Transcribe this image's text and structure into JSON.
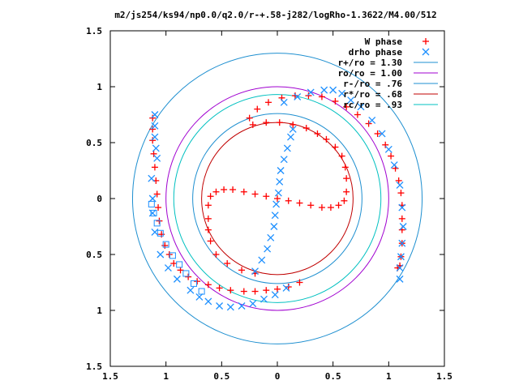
{
  "chart_data": {
    "type": "scatter",
    "title": "m2/js254/ks94/np0.0/q2.0/r-+.58-j282/logRho-1.3622/M4.00/512",
    "xlabel": "",
    "ylabel": "",
    "xlim": [
      -1.5,
      1.5
    ],
    "ylim": [
      -1.5,
      1.5
    ],
    "grid": false,
    "legend_position": "top-right",
    "x_ticks": [
      -1.5,
      -1,
      -0.5,
      0,
      0.5,
      1,
      1.5
    ],
    "x_tick_labels": [
      "1.5",
      "1",
      "0.5",
      "0",
      "0.5",
      "1",
      "1.5"
    ],
    "y_ticks": [
      1.5,
      1,
      0.5,
      0,
      -0.5,
      -1,
      -1.5
    ],
    "y_tick_labels": [
      "1.5",
      "1",
      "0.5",
      "0",
      "0.5",
      "1",
      "1.5"
    ],
    "series": [
      {
        "name": "W phase",
        "marker": "plus",
        "color": "#ff0000",
        "points": [
          [
            -1.12,
            0.72
          ],
          [
            -1.12,
            0.62
          ],
          [
            -1.12,
            0.52
          ],
          [
            -1.11,
            0.4
          ],
          [
            -1.1,
            0.28
          ],
          [
            -1.09,
            0.16
          ],
          [
            -1.08,
            0.04
          ],
          [
            -1.07,
            -0.08
          ],
          [
            -1.06,
            -0.2
          ],
          [
            -1.04,
            -0.32
          ],
          [
            -1.01,
            -0.42
          ],
          [
            -0.97,
            -0.5
          ],
          [
            -0.93,
            -0.58
          ],
          [
            -0.87,
            -0.64
          ],
          [
            -0.8,
            -0.7
          ],
          [
            -0.72,
            -0.74
          ],
          [
            -0.62,
            -0.77
          ],
          [
            -0.52,
            -0.8
          ],
          [
            -0.42,
            -0.82
          ],
          [
            -0.3,
            -0.83
          ],
          [
            -0.2,
            -0.83
          ],
          [
            -0.1,
            -0.82
          ],
          [
            0.0,
            -0.81
          ],
          [
            0.1,
            -0.79
          ],
          [
            0.2,
            -0.75
          ],
          [
            -0.6,
            -0.38
          ],
          [
            -0.62,
            -0.28
          ],
          [
            -0.62,
            -0.18
          ],
          [
            -0.62,
            -0.06
          ],
          [
            -0.6,
            0.02
          ],
          [
            -0.55,
            0.06
          ],
          [
            -0.48,
            0.08
          ],
          [
            -0.4,
            0.08
          ],
          [
            -0.3,
            0.06
          ],
          [
            -0.2,
            0.04
          ],
          [
            -0.1,
            0.02
          ],
          [
            0.0,
            0.0
          ],
          [
            0.1,
            -0.02
          ],
          [
            0.2,
            -0.04
          ],
          [
            0.3,
            -0.06
          ],
          [
            0.4,
            -0.08
          ],
          [
            0.48,
            -0.08
          ],
          [
            0.55,
            -0.06
          ],
          [
            0.6,
            -0.02
          ],
          [
            0.62,
            0.06
          ],
          [
            0.62,
            0.18
          ],
          [
            0.61,
            0.28
          ],
          [
            0.58,
            0.38
          ],
          [
            0.52,
            0.46
          ],
          [
            0.44,
            0.53
          ],
          [
            0.36,
            0.58
          ],
          [
            0.26,
            0.63
          ],
          [
            0.14,
            0.66
          ],
          [
            0.02,
            0.68
          ],
          [
            -0.1,
            0.68
          ],
          [
            -0.22,
            0.66
          ],
          [
            -0.55,
            -0.5
          ],
          [
            -0.45,
            -0.58
          ],
          [
            -0.32,
            -0.64
          ],
          [
            -0.2,
            -0.67
          ],
          [
            -0.25,
            0.72
          ],
          [
            -0.18,
            0.8
          ],
          [
            -0.08,
            0.86
          ],
          [
            0.04,
            0.9
          ],
          [
            0.16,
            0.92
          ],
          [
            0.28,
            0.92
          ],
          [
            0.4,
            0.91
          ],
          [
            0.52,
            0.87
          ],
          [
            0.62,
            0.82
          ],
          [
            0.72,
            0.75
          ],
          [
            0.82,
            0.67
          ],
          [
            0.9,
            0.58
          ],
          [
            0.97,
            0.48
          ],
          [
            1.02,
            0.38
          ],
          [
            1.06,
            0.27
          ],
          [
            1.09,
            0.16
          ],
          [
            1.11,
            0.05
          ],
          [
            1.12,
            -0.06
          ],
          [
            1.12,
            -0.18
          ],
          [
            1.12,
            -0.28
          ],
          [
            1.12,
            -0.4
          ],
          [
            1.11,
            -0.52
          ],
          [
            1.1,
            -0.6
          ],
          [
            1.08,
            -0.62
          ]
        ]
      },
      {
        "name": "drho phase",
        "marker": "cross",
        "color": "#1e90ff",
        "points": [
          [
            -1.1,
            0.75
          ],
          [
            -1.1,
            0.65
          ],
          [
            -1.1,
            0.55
          ],
          [
            -1.09,
            0.45
          ],
          [
            -1.08,
            0.36
          ],
          [
            -1.13,
            0.18
          ],
          [
            -1.12,
            0.0
          ],
          [
            -1.12,
            -0.13
          ],
          [
            -1.1,
            -0.3
          ],
          [
            -1.05,
            -0.5
          ],
          [
            -0.98,
            -0.62
          ],
          [
            -0.9,
            -0.72
          ],
          [
            -0.78,
            -0.82
          ],
          [
            -0.7,
            -0.88
          ],
          [
            -0.62,
            -0.92
          ],
          [
            -0.52,
            -0.96
          ],
          [
            -0.42,
            -0.97
          ],
          [
            -0.32,
            -0.96
          ],
          [
            -0.22,
            -0.94
          ],
          [
            -0.12,
            -0.9
          ],
          [
            -0.02,
            -0.86
          ],
          [
            0.08,
            -0.8
          ],
          [
            -0.2,
            -0.65
          ],
          [
            -0.14,
            -0.55
          ],
          [
            -0.09,
            -0.45
          ],
          [
            -0.06,
            -0.35
          ],
          [
            -0.03,
            -0.25
          ],
          [
            -0.02,
            -0.15
          ],
          [
            -0.01,
            -0.05
          ],
          [
            0.01,
            0.05
          ],
          [
            0.02,
            0.15
          ],
          [
            0.03,
            0.25
          ],
          [
            0.06,
            0.35
          ],
          [
            0.09,
            0.45
          ],
          [
            0.12,
            0.55
          ],
          [
            0.14,
            0.62
          ],
          [
            0.06,
            0.86
          ],
          [
            0.18,
            0.91
          ],
          [
            0.3,
            0.95
          ],
          [
            0.42,
            0.97
          ],
          [
            0.5,
            0.97
          ],
          [
            0.58,
            0.94
          ],
          [
            0.66,
            0.88
          ],
          [
            0.75,
            0.82
          ],
          [
            0.85,
            0.7
          ],
          [
            0.94,
            0.58
          ],
          [
            1.0,
            0.44
          ],
          [
            1.05,
            0.3
          ],
          [
            1.1,
            0.12
          ],
          [
            1.12,
            -0.08
          ],
          [
            1.13,
            -0.25
          ],
          [
            1.12,
            -0.4
          ],
          [
            1.11,
            -0.52
          ],
          [
            1.1,
            -0.62
          ],
          [
            1.1,
            -0.72
          ]
        ]
      },
      {
        "name": "",
        "marker": "open-square",
        "color": "#1e90ff",
        "points": [
          [
            -1.13,
            -0.05
          ],
          [
            -1.11,
            -0.13
          ],
          [
            -1.08,
            -0.22
          ],
          [
            -1.05,
            -0.31
          ],
          [
            -1.0,
            -0.41
          ],
          [
            -0.94,
            -0.51
          ],
          [
            -0.88,
            -0.59
          ],
          [
            -0.82,
            -0.67
          ],
          [
            -0.75,
            -0.76
          ],
          [
            -0.68,
            -0.83
          ]
        ]
      }
    ],
    "circles": [
      {
        "name": "r+/ro = 1.30",
        "radius": 1.3,
        "color": "#1e8fd0"
      },
      {
        "name": "ro/ro = 1.00",
        "radius": 1.0,
        "color": "#a000d0"
      },
      {
        "name": "r-/ro = .76",
        "radius": 0.76,
        "color": "#1e8fd0"
      },
      {
        "name": "r*/ro = .68",
        "radius": 0.68,
        "color": "#c00000"
      },
      {
        "name": "rc/ro = .93",
        "radius": 0.93,
        "color": "#00c0c0"
      }
    ],
    "legend": [
      {
        "label": "W phase",
        "marker": "plus",
        "color": "#ff0000"
      },
      {
        "label": "drho phase",
        "marker": "cross",
        "color": "#1e90ff"
      },
      {
        "label": "r+/ro = 1.30",
        "marker": "line",
        "color": "#1e8fd0"
      },
      {
        "label": "ro/ro = 1.00",
        "marker": "line",
        "color": "#a000d0"
      },
      {
        "label": "r-/ro = .76",
        "marker": "line",
        "color": "#1e8fd0"
      },
      {
        "label": "r*/ro = .68",
        "marker": "line",
        "color": "#c00000"
      },
      {
        "label": "rc/ro = .93",
        "marker": "line",
        "color": "#00c0c0"
      }
    ]
  }
}
